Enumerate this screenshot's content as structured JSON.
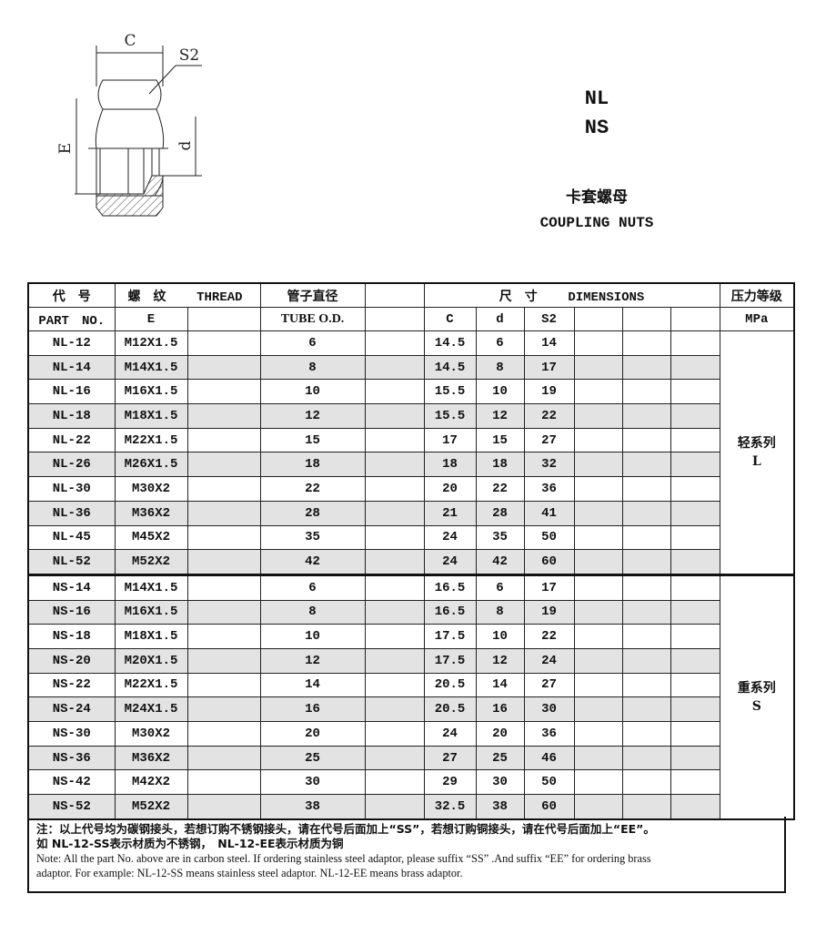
{
  "drawing": {
    "labels": {
      "c": "C",
      "s2": "S2",
      "e": "E",
      "d": "d"
    }
  },
  "titles": {
    "code1": "NL",
    "code2": "NS",
    "name_cn": "卡套螺母",
    "name_en": "COUPLING NUTS"
  },
  "table": {
    "header1": {
      "part": "代　号",
      "thread_cn": "螺　纹",
      "thread_en": "THREAD",
      "tube": "管子直径",
      "dims_cn": "尺　寸",
      "dims_en": "DIMENSIONS",
      "pressure": "压力等级"
    },
    "header2": {
      "part": "PART　NO.",
      "thread": "E",
      "tube": "TUBE O.D.",
      "c": "C",
      "d": "d",
      "s2": "S2",
      "pressure": "MPa"
    },
    "rows": [
      {
        "part": "NL-12",
        "thread": "M12X1.5",
        "tube": "6",
        "c": "14.5",
        "d": "6",
        "s2": "14"
      },
      {
        "part": "NL-14",
        "thread": "M14X1.5",
        "tube": "8",
        "c": "14.5",
        "d": "8",
        "s2": "17"
      },
      {
        "part": "NL-16",
        "thread": "M16X1.5",
        "tube": "10",
        "c": "15.5",
        "d": "10",
        "s2": "19"
      },
      {
        "part": "NL-18",
        "thread": "M18X1.5",
        "tube": "12",
        "c": "15.5",
        "d": "12",
        "s2": "22"
      },
      {
        "part": "NL-22",
        "thread": "M22X1.5",
        "tube": "15",
        "c": "17",
        "d": "15",
        "s2": "27"
      },
      {
        "part": "NL-26",
        "thread": "M26X1.5",
        "tube": "18",
        "c": "18",
        "d": "18",
        "s2": "32"
      },
      {
        "part": "NL-30",
        "thread": "M30X2",
        "tube": "22",
        "c": "20",
        "d": "22",
        "s2": "36"
      },
      {
        "part": "NL-36",
        "thread": "M36X2",
        "tube": "28",
        "c": "21",
        "d": "28",
        "s2": "41"
      },
      {
        "part": "NL-45",
        "thread": "M45X2",
        "tube": "35",
        "c": "24",
        "d": "35",
        "s2": "50"
      },
      {
        "part": "NL-52",
        "thread": "M52X2",
        "tube": "42",
        "c": "24",
        "d": "42",
        "s2": "60"
      },
      {
        "part": "NS-14",
        "thread": "M14X1.5",
        "tube": "6",
        "c": "16.5",
        "d": "6",
        "s2": "17"
      },
      {
        "part": "NS-16",
        "thread": "M16X1.5",
        "tube": "8",
        "c": "16.5",
        "d": "8",
        "s2": "19"
      },
      {
        "part": "NS-18",
        "thread": "M18X1.5",
        "tube": "10",
        "c": "17.5",
        "d": "10",
        "s2": "22"
      },
      {
        "part": "NS-20",
        "thread": "M20X1.5",
        "tube": "12",
        "c": "17.5",
        "d": "12",
        "s2": "24"
      },
      {
        "part": "NS-22",
        "thread": "M22X1.5",
        "tube": "14",
        "c": "20.5",
        "d": "14",
        "s2": "27"
      },
      {
        "part": "NS-24",
        "thread": "M24X1.5",
        "tube": "16",
        "c": "20.5",
        "d": "16",
        "s2": "30"
      },
      {
        "part": "NS-30",
        "thread": "M30X2",
        "tube": "20",
        "c": "24",
        "d": "20",
        "s2": "36"
      },
      {
        "part": "NS-36",
        "thread": "M36X2",
        "tube": "25",
        "c": "27",
        "d": "25",
        "s2": "46"
      },
      {
        "part": "NS-42",
        "thread": "M42X2",
        "tube": "30",
        "c": "29",
        "d": "30",
        "s2": "50"
      },
      {
        "part": "NS-52",
        "thread": "M52X2",
        "tube": "38",
        "c": "32.5",
        "d": "38",
        "s2": "60"
      }
    ],
    "series": [
      {
        "cn": "轻系列",
        "en": "L"
      },
      {
        "cn": "重系列",
        "en": "S"
      }
    ]
  },
  "note": {
    "cn1": "注：以上代号均为碳钢接头，若想订购不锈钢接头，请在代号后面加上“SS”，若想订购铜接头，请在代号后面加上“EE”。",
    "cn2": "如 NL-12-SS表示材质为不锈钢，　NL-12-EE表示材质为铜",
    "en1": "Note: All the part No. above are in carbon steel. If ordering stainless steel adaptor, please suffix “SS” .And suffix “EE” for ordering brass",
    "en2": "adaptor. For example:  NL-12-SS  means stainless steel adaptor.  NL-12-EE means brass adaptor."
  }
}
